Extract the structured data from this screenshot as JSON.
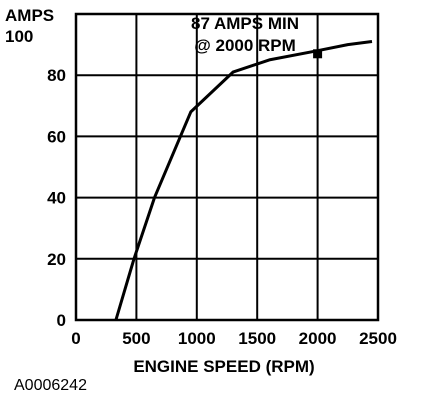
{
  "chart_data": {
    "type": "line",
    "title": "",
    "ylabel_line1": "AMPS",
    "ylabel_line2": "100",
    "xlabel": "ENGINE SPEED (RPM)",
    "xlim": [
      0,
      2500
    ],
    "ylim": [
      0,
      100
    ],
    "x_ticks": [
      "0",
      "500",
      "1000",
      "1500",
      "2000",
      "2500"
    ],
    "x_tick_values": [
      0,
      500,
      1000,
      1500,
      2000,
      2500
    ],
    "y_ticks": [
      "0",
      "20",
      "40",
      "60",
      "80"
    ],
    "y_tick_values": [
      0,
      20,
      40,
      60,
      80
    ],
    "grid": true,
    "series": [
      {
        "x": [
          330,
          480,
          650,
          950,
          1300,
          1600,
          2000,
          2250,
          2450
        ],
        "y": [
          0,
          20,
          40,
          68,
          81,
          85,
          88,
          90,
          91
        ]
      }
    ],
    "marker": {
      "x": 2000,
      "y": 87
    },
    "annotation_line1": "87 AMPS MIN",
    "annotation_line2": "@ 2000 RPM"
  },
  "figure_code": "A0006242"
}
